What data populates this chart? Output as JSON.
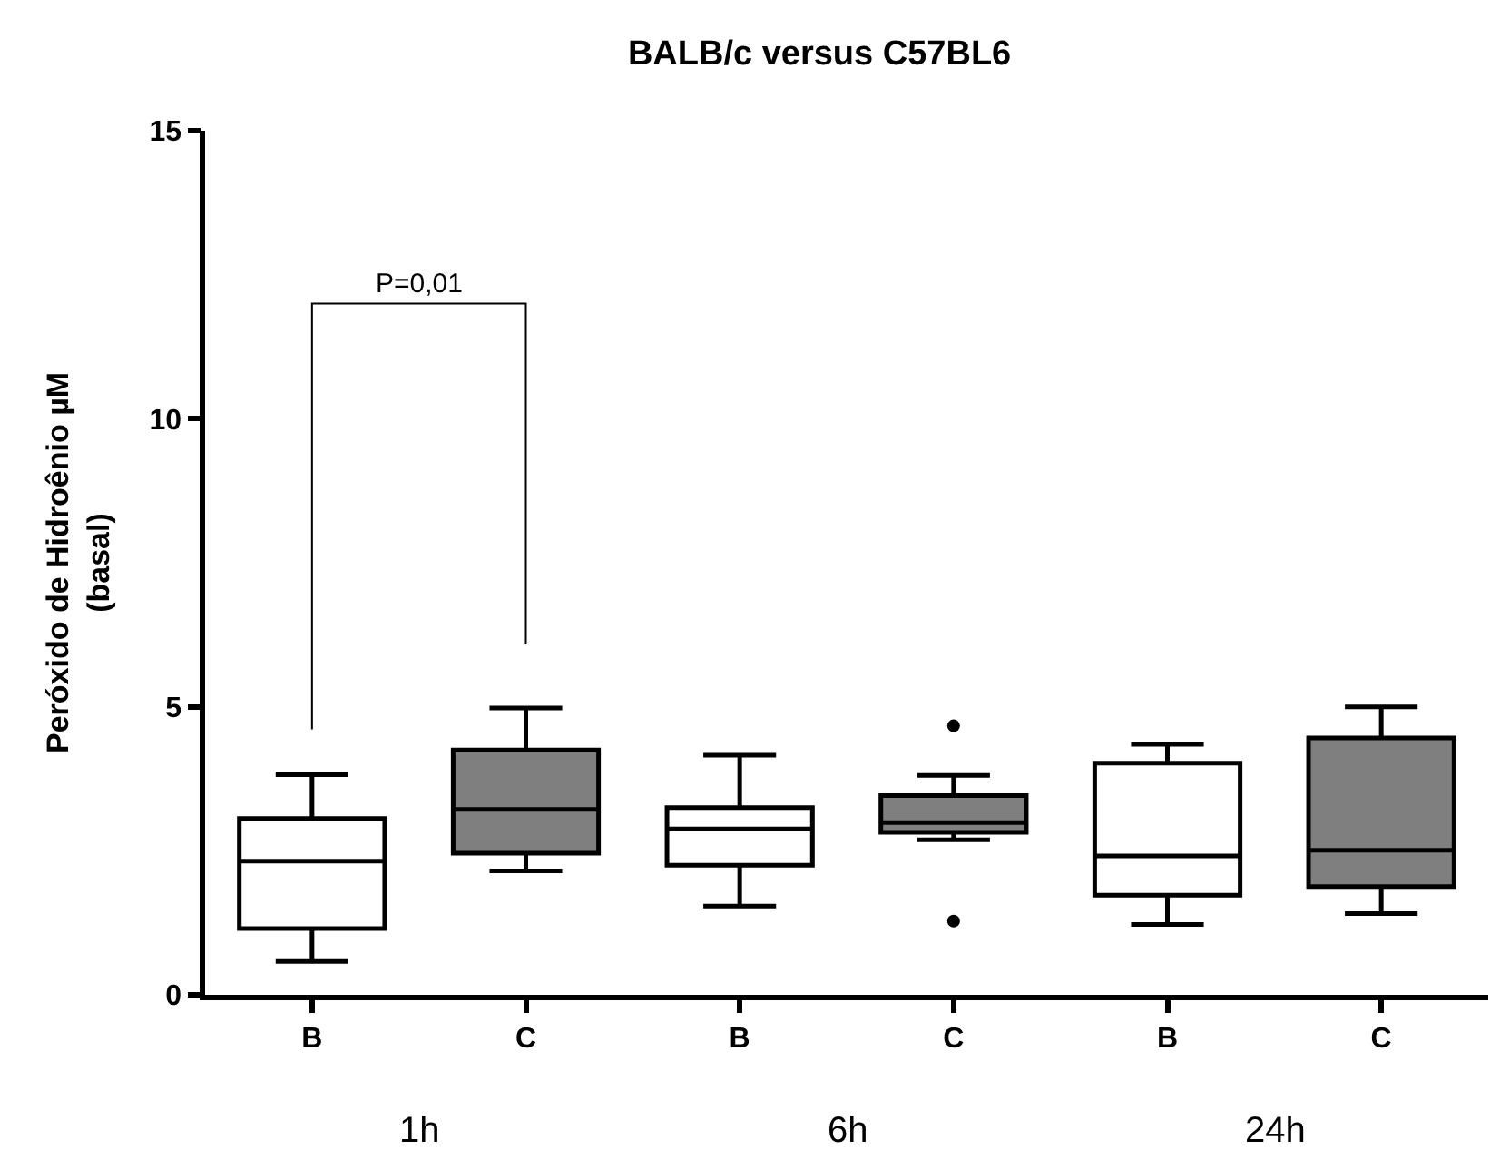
{
  "chart_data": {
    "type": "box",
    "title": "BALB/c versus C57BL6",
    "ylabel": "Peróxido de Hidroênio µM\n(basal)",
    "categories": [
      "B",
      "C",
      "B",
      "C",
      "B",
      "C"
    ],
    "colors": [
      "#ffffff",
      "#7f7f7f",
      "#ffffff",
      "#7f7f7f",
      "#ffffff",
      "#7f7f7f"
    ],
    "boxes": [
      {
        "low": 0.58,
        "q1": 1.15,
        "median": 2.32,
        "q3": 3.06,
        "high": 3.82
      },
      {
        "low": 2.15,
        "q1": 2.46,
        "median": 3.22,
        "q3": 4.25,
        "high": 4.98
      },
      {
        "low": 1.54,
        "q1": 2.25,
        "median": 2.88,
        "q3": 3.25,
        "high": 4.16
      },
      {
        "low": 2.69,
        "q1": 2.82,
        "median": 2.99,
        "q3": 3.46,
        "high": 3.81,
        "outliers": [
          4.67,
          1.28
        ]
      },
      {
        "low": 1.22,
        "q1": 1.73,
        "median": 2.41,
        "q3": 4.02,
        "high": 4.35
      },
      {
        "low": 1.41,
        "q1": 1.88,
        "median": 2.51,
        "q3": 4.46,
        "high": 5.0
      }
    ],
    "ylim": [
      0,
      15
    ],
    "yticks": [
      0,
      5,
      10,
      15
    ],
    "grid": false,
    "annotations": [
      "P=0,01",
      "1h",
      "6h",
      "24h"
    ]
  }
}
